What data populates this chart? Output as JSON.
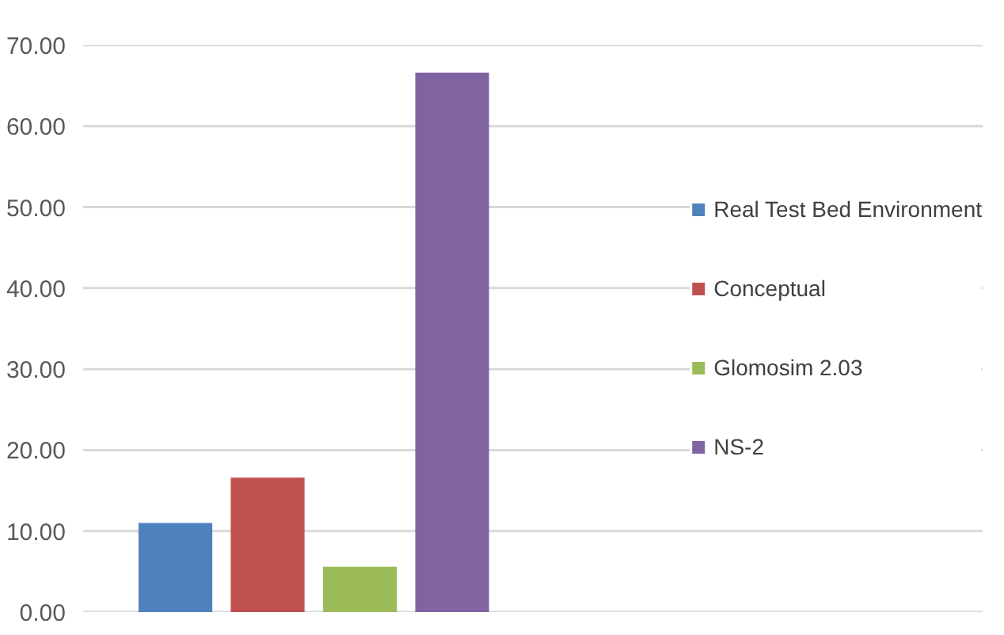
{
  "chart_data": {
    "type": "bar",
    "categories": [
      null
    ],
    "series": [
      {
        "name": "Real Test Bed Environment",
        "color": "#4f81bd",
        "values": [
          11.0
        ]
      },
      {
        "name": "Conceptual",
        "color": "#c0504d",
        "values": [
          16.6
        ]
      },
      {
        "name": "Glomosim 2.03",
        "color": "#9bbb59",
        "values": [
          5.6
        ]
      },
      {
        "name": "NS-2",
        "color": "#8064a2",
        "values": [
          66.6
        ]
      }
    ],
    "ylim": [
      0,
      70
    ],
    "yticks": [
      {
        "value": 0,
        "label": "0.00"
      },
      {
        "value": 10,
        "label": "10.00"
      },
      {
        "value": 20,
        "label": "20.00"
      },
      {
        "value": 30,
        "label": "30.00"
      },
      {
        "value": 40,
        "label": "40.00"
      },
      {
        "value": 50,
        "label": "50.00"
      },
      {
        "value": 60,
        "label": "60.00"
      },
      {
        "value": 70,
        "label": "70.00"
      }
    ],
    "grid": "y",
    "legend": "right"
  }
}
